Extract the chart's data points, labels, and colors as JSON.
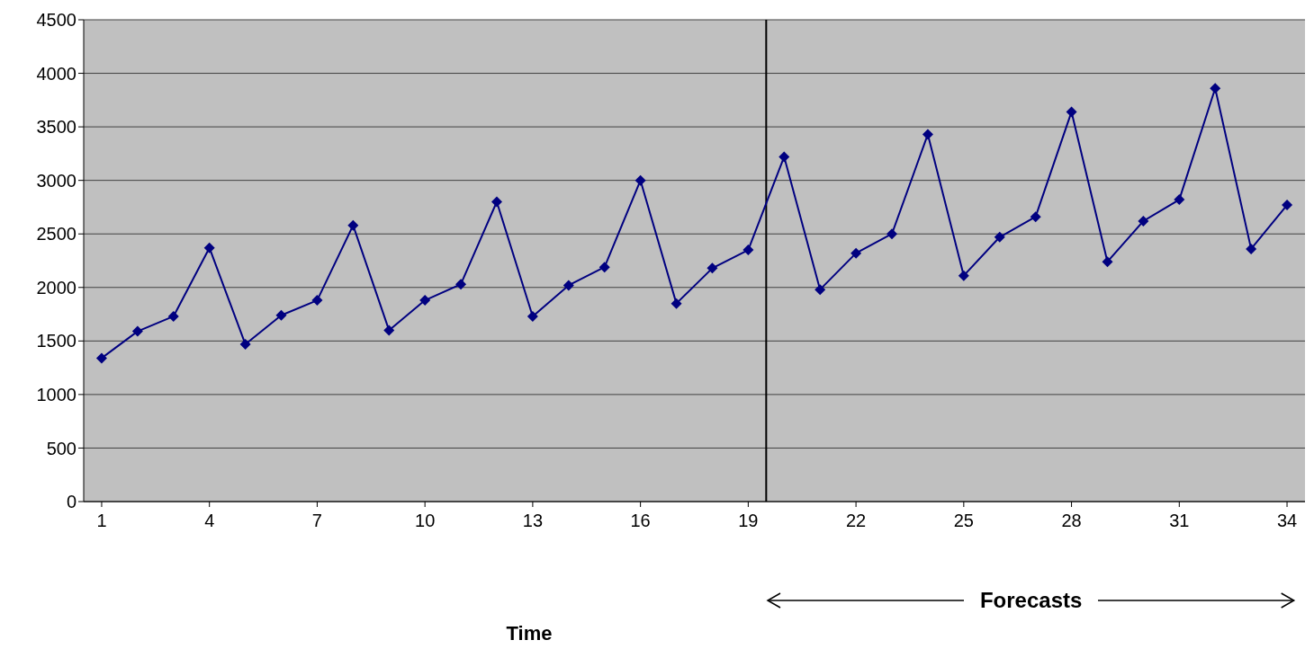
{
  "chart_data": {
    "type": "line",
    "xlabel": "Time",
    "x": [
      1,
      2,
      3,
      4,
      5,
      6,
      7,
      8,
      9,
      10,
      11,
      12,
      13,
      14,
      15,
      16,
      17,
      18,
      19,
      20,
      21,
      22,
      23,
      24,
      25,
      26,
      27,
      28,
      29,
      30,
      31,
      32,
      33,
      34
    ],
    "series": [
      {
        "color": "#000080",
        "values": [
          1340,
          1590,
          1730,
          2370,
          1470,
          1740,
          1880,
          2580,
          1600,
          1880,
          2030,
          2800,
          1730,
          2020,
          2190,
          3000,
          1850,
          2180,
          2350,
          3220,
          1980,
          2320,
          2500,
          3430,
          2110,
          2470,
          2660,
          3640,
          2240,
          2620,
          2820,
          3860,
          2360,
          2770
        ]
      }
    ],
    "xlim": [
      0.5,
      34.5
    ],
    "xticks": [
      1,
      4,
      7,
      10,
      13,
      16,
      19,
      22,
      25,
      28,
      31,
      34
    ],
    "ylim": [
      0,
      4500
    ],
    "yticks": [
      0,
      500,
      1000,
      1500,
      2000,
      2500,
      3000,
      3500,
      4000,
      4500
    ],
    "grid": "y",
    "marker": "diamond",
    "line_style": "solid",
    "ref_lines": [
      {
        "axis": "x",
        "value": 19.5,
        "color": "#000000"
      }
    ],
    "annotations": [
      "Forecasts"
    ]
  }
}
